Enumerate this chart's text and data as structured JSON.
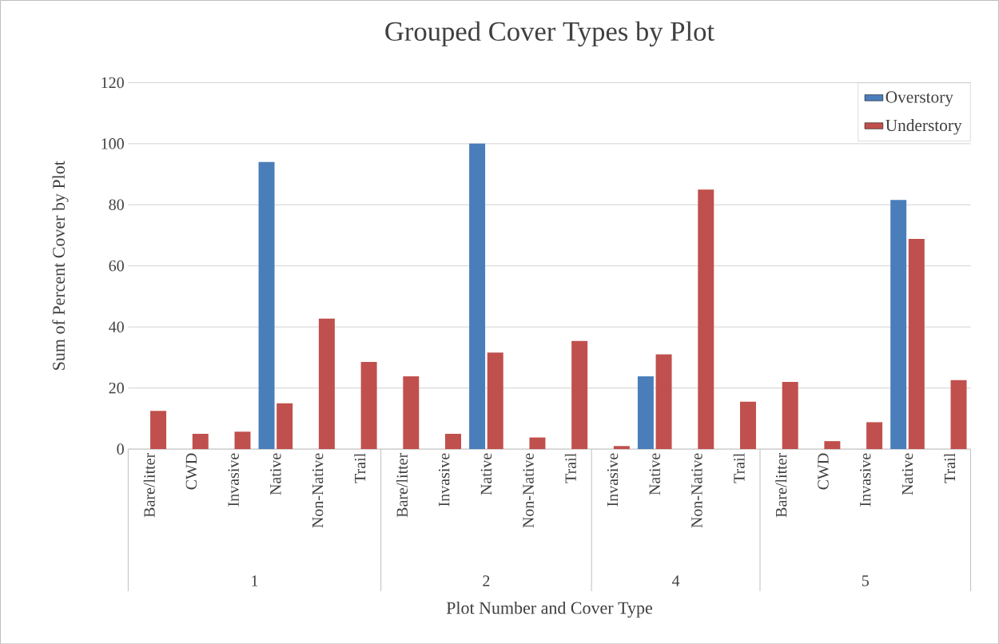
{
  "chart_data": {
    "type": "bar",
    "title": "Grouped Cover Types by Plot",
    "xlabel": "Plot Number and Cover Type",
    "ylabel": "Sum of Percent Cover  by  Plot",
    "categories": [
      "Bare/litter",
      "CWD",
      "Invasive",
      "Native",
      "Non-Native",
      "Trail",
      "Bare/litter",
      "Invasive",
      "Native",
      "Non-Native",
      "Trail",
      "Invasive",
      "Native",
      "Non-Native",
      "Trail",
      "Bare/litter",
      "CWD",
      "Invasive",
      "Native",
      "Trail"
    ],
    "series": [
      {
        "name": "Overstory",
        "color": "#4a7ebb",
        "values": [
          null,
          null,
          null,
          94,
          null,
          null,
          null,
          null,
          100,
          null,
          null,
          null,
          23.8,
          null,
          null,
          null,
          null,
          null,
          81.6,
          null
        ]
      },
      {
        "name": "Understory",
        "color": "#c0504d",
        "values": [
          12.5,
          5,
          5.7,
          15,
          42.7,
          28.5,
          23.8,
          5,
          31.6,
          3.8,
          35.4,
          1,
          31,
          85,
          15.5,
          22,
          2.6,
          8.8,
          68.8,
          22.6
        ]
      }
    ],
    "annotations": [
      "1",
      "2",
      "4",
      "5"
    ],
    "ylim": [
      0,
      120
    ],
    "yticks": [
      0,
      20,
      40,
      60,
      80,
      100,
      120
    ],
    "grid": "y",
    "legend": "top right"
  }
}
